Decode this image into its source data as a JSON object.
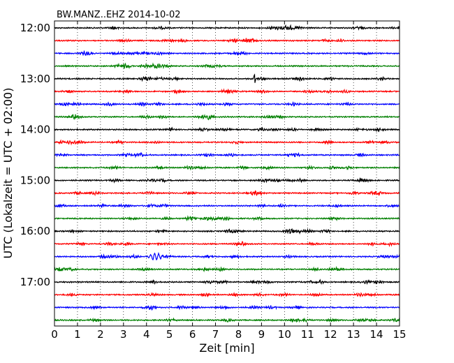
{
  "chart_data": {
    "type": "line",
    "title": "BW.MANZ..EHZ 2014-10-02",
    "xlabel": "Zeit  [min]",
    "ylabel": "UTC (Lokalzeit = UTC + 02:00)",
    "xlim": [
      0,
      15
    ],
    "x_ticks": [
      "0",
      "1",
      "2",
      "3",
      "4",
      "5",
      "6",
      "7",
      "8",
      "9",
      "10",
      "11",
      "12",
      "13",
      "14",
      "15"
    ],
    "y_ticks": [
      "12:00",
      "13:00",
      "14:00",
      "15:00",
      "16:00",
      "17:00"
    ],
    "grid": "vertical dotted",
    "trace_colors": [
      "#000000",
      "#ff0000",
      "#0000ff",
      "#008000"
    ],
    "rows": [
      {
        "start": "12:00"
      },
      {
        "start": "12:15"
      },
      {
        "start": "12:30"
      },
      {
        "start": "12:45"
      },
      {
        "start": "13:00"
      },
      {
        "start": "13:15"
      },
      {
        "start": "13:30"
      },
      {
        "start": "13:45"
      },
      {
        "start": "14:00"
      },
      {
        "start": "14:15"
      },
      {
        "start": "14:30"
      },
      {
        "start": "14:45"
      },
      {
        "start": "15:00"
      },
      {
        "start": "15:15"
      },
      {
        "start": "15:30"
      },
      {
        "start": "15:45"
      },
      {
        "start": "16:00"
      },
      {
        "start": "16:15"
      },
      {
        "start": "16:30"
      },
      {
        "start": "16:45"
      },
      {
        "start": "17:00"
      },
      {
        "start": "17:15"
      },
      {
        "start": "17:30"
      },
      {
        "start": "17:45"
      }
    ],
    "events": [
      {
        "start": "13:00",
        "minute": 8.7,
        "type": "spike"
      },
      {
        "start": "16:30",
        "minute": 4.4,
        "type": "burst"
      }
    ]
  }
}
